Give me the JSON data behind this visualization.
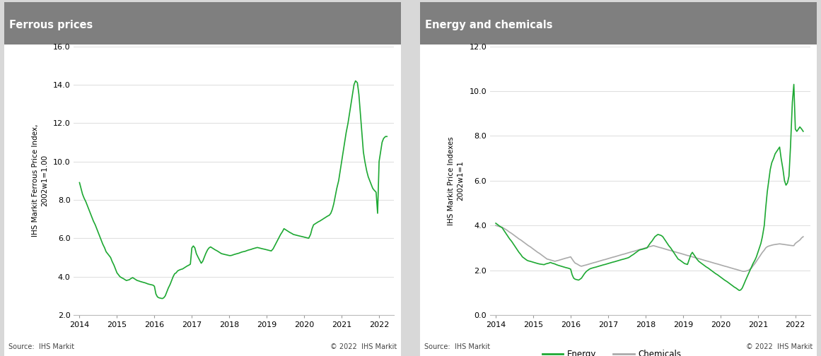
{
  "ferrous_title": "Ferrous prices",
  "energy_title": "Energy and chemicals",
  "ferrous_ylabel": "IHS Markit Ferrous Price Index,\n2002w1=1.00",
  "energy_ylabel": "IHS Markit Price Indexes\n2002w1=1",
  "source_text": "Source:  IHS Markit",
  "copyright_text": "© 2022  IHS Markit",
  "header_color": "#7f7f7f",
  "line_green": "#1da832",
  "line_gray": "#aaaaaa",
  "fig_bg": "#e0e0e0",
  "panel_bg": "#ffffff",
  "ferrous_ylim": [
    2.0,
    16.0
  ],
  "ferrous_yticks": [
    2.0,
    4.0,
    6.0,
    8.0,
    10.0,
    12.0,
    14.0,
    16.0
  ],
  "energy_ylim": [
    0.0,
    12.0
  ],
  "energy_yticks": [
    0.0,
    2.0,
    4.0,
    6.0,
    8.0,
    10.0,
    12.0
  ],
  "xlim": [
    2013.85,
    2022.4
  ],
  "xticks": [
    2014,
    2015,
    2016,
    2017,
    2018,
    2019,
    2020,
    2021,
    2022
  ],
  "ferrous_x": [
    2014.0,
    2014.04,
    2014.08,
    2014.12,
    2014.17,
    2014.21,
    2014.25,
    2014.29,
    2014.33,
    2014.37,
    2014.42,
    2014.46,
    2014.5,
    2014.54,
    2014.58,
    2014.62,
    2014.67,
    2014.71,
    2014.75,
    2014.79,
    2014.83,
    2014.87,
    2014.92,
    2014.96,
    2015.0,
    2015.04,
    2015.08,
    2015.12,
    2015.17,
    2015.21,
    2015.25,
    2015.29,
    2015.33,
    2015.37,
    2015.42,
    2015.46,
    2015.5,
    2015.54,
    2015.58,
    2015.62,
    2015.67,
    2015.71,
    2015.75,
    2015.79,
    2015.83,
    2015.87,
    2015.92,
    2015.96,
    2016.0,
    2016.04,
    2016.08,
    2016.12,
    2016.17,
    2016.21,
    2016.25,
    2016.29,
    2016.33,
    2016.37,
    2016.42,
    2016.46,
    2016.5,
    2016.54,
    2016.58,
    2016.62,
    2016.67,
    2016.71,
    2016.75,
    2016.79,
    2016.83,
    2016.87,
    2016.92,
    2016.96,
    2017.0,
    2017.04,
    2017.08,
    2017.12,
    2017.17,
    2017.21,
    2017.25,
    2017.29,
    2017.33,
    2017.37,
    2017.42,
    2017.46,
    2017.5,
    2017.54,
    2017.58,
    2017.62,
    2017.67,
    2017.71,
    2017.75,
    2017.79,
    2017.83,
    2017.87,
    2017.92,
    2017.96,
    2018.0,
    2018.04,
    2018.08,
    2018.12,
    2018.17,
    2018.21,
    2018.25,
    2018.29,
    2018.33,
    2018.37,
    2018.42,
    2018.46,
    2018.5,
    2018.54,
    2018.58,
    2018.62,
    2018.67,
    2018.71,
    2018.75,
    2018.79,
    2018.83,
    2018.87,
    2018.92,
    2018.96,
    2019.0,
    2019.04,
    2019.08,
    2019.12,
    2019.17,
    2019.21,
    2019.25,
    2019.29,
    2019.33,
    2019.37,
    2019.42,
    2019.46,
    2019.5,
    2019.54,
    2019.58,
    2019.62,
    2019.67,
    2019.71,
    2019.75,
    2019.79,
    2019.83,
    2019.87,
    2019.92,
    2019.96,
    2020.0,
    2020.04,
    2020.08,
    2020.12,
    2020.17,
    2020.21,
    2020.25,
    2020.29,
    2020.33,
    2020.37,
    2020.42,
    2020.46,
    2020.5,
    2020.54,
    2020.58,
    2020.62,
    2020.67,
    2020.71,
    2020.75,
    2020.79,
    2020.83,
    2020.87,
    2020.92,
    2020.96,
    2021.0,
    2021.04,
    2021.08,
    2021.12,
    2021.17,
    2021.21,
    2021.25,
    2021.29,
    2021.33,
    2021.37,
    2021.42,
    2021.46,
    2021.5,
    2021.54,
    2021.58,
    2021.62,
    2021.67,
    2021.71,
    2021.75,
    2021.79,
    2021.83,
    2021.87,
    2021.92,
    2021.96,
    2022.0,
    2022.04,
    2022.08,
    2022.12,
    2022.17,
    2022.21
  ],
  "ferrous_y": [
    8.9,
    8.6,
    8.3,
    8.1,
    7.9,
    7.7,
    7.5,
    7.3,
    7.1,
    6.9,
    6.7,
    6.5,
    6.3,
    6.1,
    5.9,
    5.7,
    5.5,
    5.3,
    5.2,
    5.1,
    5.0,
    4.8,
    4.6,
    4.4,
    4.2,
    4.1,
    4.0,
    3.95,
    3.9,
    3.85,
    3.8,
    3.82,
    3.84,
    3.9,
    3.95,
    3.9,
    3.85,
    3.8,
    3.78,
    3.75,
    3.72,
    3.7,
    3.68,
    3.65,
    3.62,
    3.6,
    3.58,
    3.56,
    3.5,
    3.1,
    2.95,
    2.9,
    2.88,
    2.86,
    2.9,
    3.0,
    3.2,
    3.4,
    3.6,
    3.8,
    4.0,
    4.15,
    4.2,
    4.3,
    4.35,
    4.38,
    4.4,
    4.45,
    4.5,
    4.55,
    4.6,
    4.65,
    5.5,
    5.6,
    5.5,
    5.2,
    5.0,
    4.85,
    4.7,
    4.8,
    5.0,
    5.2,
    5.4,
    5.5,
    5.55,
    5.5,
    5.45,
    5.4,
    5.35,
    5.3,
    5.25,
    5.2,
    5.18,
    5.16,
    5.14,
    5.12,
    5.1,
    5.1,
    5.12,
    5.15,
    5.18,
    5.2,
    5.22,
    5.25,
    5.28,
    5.3,
    5.32,
    5.35,
    5.38,
    5.4,
    5.42,
    5.45,
    5.48,
    5.5,
    5.52,
    5.5,
    5.48,
    5.46,
    5.44,
    5.42,
    5.4,
    5.38,
    5.36,
    5.34,
    5.45,
    5.6,
    5.75,
    5.9,
    6.05,
    6.2,
    6.35,
    6.5,
    6.45,
    6.4,
    6.35,
    6.3,
    6.25,
    6.2,
    6.18,
    6.16,
    6.14,
    6.12,
    6.1,
    6.08,
    6.06,
    6.04,
    6.02,
    6.0,
    6.2,
    6.5,
    6.7,
    6.75,
    6.8,
    6.85,
    6.9,
    6.95,
    7.0,
    7.05,
    7.1,
    7.15,
    7.2,
    7.3,
    7.5,
    7.8,
    8.2,
    8.6,
    9.0,
    9.5,
    10.0,
    10.5,
    11.0,
    11.5,
    12.0,
    12.5,
    13.0,
    13.5,
    14.0,
    14.2,
    14.1,
    13.5,
    12.5,
    11.5,
    10.5,
    10.0,
    9.5,
    9.2,
    9.0,
    8.8,
    8.6,
    8.5,
    8.4,
    7.3,
    10.0,
    10.5,
    11.0,
    11.2,
    11.3,
    11.3
  ],
  "energy_x": [
    2014.0,
    2014.04,
    2014.08,
    2014.12,
    2014.17,
    2014.21,
    2014.25,
    2014.29,
    2014.33,
    2014.37,
    2014.42,
    2014.46,
    2014.5,
    2014.54,
    2014.58,
    2014.62,
    2014.67,
    2014.71,
    2014.75,
    2014.79,
    2014.83,
    2014.87,
    2014.92,
    2014.96,
    2015.0,
    2015.04,
    2015.08,
    2015.12,
    2015.17,
    2015.21,
    2015.25,
    2015.29,
    2015.33,
    2015.37,
    2015.42,
    2015.46,
    2015.5,
    2015.54,
    2015.58,
    2015.62,
    2015.67,
    2015.71,
    2015.75,
    2015.79,
    2015.83,
    2015.87,
    2015.92,
    2015.96,
    2016.0,
    2016.04,
    2016.08,
    2016.12,
    2016.17,
    2016.21,
    2016.25,
    2016.29,
    2016.33,
    2016.37,
    2016.42,
    2016.46,
    2016.5,
    2016.54,
    2016.58,
    2016.62,
    2016.67,
    2016.71,
    2016.75,
    2016.79,
    2016.83,
    2016.87,
    2016.92,
    2016.96,
    2017.0,
    2017.04,
    2017.08,
    2017.12,
    2017.17,
    2017.21,
    2017.25,
    2017.29,
    2017.33,
    2017.37,
    2017.42,
    2017.46,
    2017.5,
    2017.54,
    2017.58,
    2017.62,
    2017.67,
    2017.71,
    2017.75,
    2017.79,
    2017.83,
    2017.87,
    2017.92,
    2017.96,
    2018.0,
    2018.04,
    2018.08,
    2018.12,
    2018.17,
    2018.21,
    2018.25,
    2018.29,
    2018.33,
    2018.37,
    2018.42,
    2018.46,
    2018.5,
    2018.54,
    2018.58,
    2018.62,
    2018.67,
    2018.71,
    2018.75,
    2018.79,
    2018.83,
    2018.87,
    2018.92,
    2018.96,
    2019.0,
    2019.04,
    2019.08,
    2019.12,
    2019.17,
    2019.21,
    2019.25,
    2019.29,
    2019.33,
    2019.37,
    2019.42,
    2019.46,
    2019.5,
    2019.54,
    2019.58,
    2019.62,
    2019.67,
    2019.71,
    2019.75,
    2019.79,
    2019.83,
    2019.87,
    2019.92,
    2019.96,
    2020.0,
    2020.04,
    2020.08,
    2020.12,
    2020.17,
    2020.21,
    2020.25,
    2020.29,
    2020.33,
    2020.37,
    2020.42,
    2020.46,
    2020.5,
    2020.54,
    2020.58,
    2020.62,
    2020.67,
    2020.71,
    2020.75,
    2020.79,
    2020.83,
    2020.87,
    2020.92,
    2020.96,
    2021.0,
    2021.04,
    2021.08,
    2021.12,
    2021.17,
    2021.21,
    2021.25,
    2021.29,
    2021.33,
    2021.37,
    2021.42,
    2021.46,
    2021.5,
    2021.54,
    2021.58,
    2021.62,
    2021.67,
    2021.71,
    2021.75,
    2021.79,
    2021.83,
    2021.87,
    2021.92,
    2021.96,
    2022.0,
    2022.04,
    2022.08,
    2022.12,
    2022.17,
    2022.21
  ],
  "energy_y": [
    4.1,
    4.05,
    4.0,
    3.95,
    3.9,
    3.8,
    3.7,
    3.6,
    3.5,
    3.4,
    3.3,
    3.2,
    3.1,
    3.0,
    2.9,
    2.8,
    2.7,
    2.6,
    2.55,
    2.5,
    2.45,
    2.42,
    2.4,
    2.38,
    2.36,
    2.34,
    2.32,
    2.3,
    2.28,
    2.27,
    2.26,
    2.25,
    2.28,
    2.3,
    2.32,
    2.35,
    2.32,
    2.3,
    2.28,
    2.25,
    2.22,
    2.2,
    2.18,
    2.16,
    2.14,
    2.12,
    2.1,
    2.08,
    2.05,
    1.8,
    1.65,
    1.6,
    1.58,
    1.56,
    1.6,
    1.65,
    1.75,
    1.85,
    1.95,
    2.0,
    2.05,
    2.08,
    2.1,
    2.12,
    2.14,
    2.16,
    2.18,
    2.2,
    2.22,
    2.24,
    2.26,
    2.28,
    2.3,
    2.32,
    2.34,
    2.36,
    2.38,
    2.4,
    2.42,
    2.44,
    2.46,
    2.48,
    2.5,
    2.52,
    2.54,
    2.56,
    2.6,
    2.65,
    2.7,
    2.75,
    2.8,
    2.85,
    2.9,
    2.92,
    2.94,
    2.96,
    2.98,
    3.0,
    3.1,
    3.2,
    3.3,
    3.4,
    3.5,
    3.55,
    3.6,
    3.58,
    3.55,
    3.5,
    3.4,
    3.3,
    3.2,
    3.1,
    3.0,
    2.9,
    2.8,
    2.7,
    2.6,
    2.5,
    2.45,
    2.4,
    2.35,
    2.3,
    2.28,
    2.26,
    2.5,
    2.7,
    2.8,
    2.7,
    2.6,
    2.5,
    2.4,
    2.35,
    2.3,
    2.25,
    2.2,
    2.15,
    2.1,
    2.05,
    2.0,
    1.95,
    1.9,
    1.85,
    1.8,
    1.75,
    1.7,
    1.65,
    1.6,
    1.55,
    1.5,
    1.45,
    1.4,
    1.35,
    1.3,
    1.25,
    1.2,
    1.15,
    1.1,
    1.12,
    1.2,
    1.35,
    1.55,
    1.7,
    1.85,
    2.0,
    2.15,
    2.3,
    2.45,
    2.6,
    2.8,
    3.0,
    3.2,
    3.5,
    4.0,
    4.8,
    5.5,
    6.0,
    6.5,
    6.8,
    7.0,
    7.2,
    7.3,
    7.4,
    7.5,
    7.0,
    6.5,
    6.0,
    5.8,
    5.9,
    6.2,
    7.5,
    9.5,
    10.3,
    8.3,
    8.2,
    8.3,
    8.4,
    8.3,
    8.2
  ],
  "chemicals_y": [
    4.0,
    3.98,
    3.96,
    3.94,
    3.92,
    3.88,
    3.84,
    3.8,
    3.75,
    3.7,
    3.65,
    3.6,
    3.55,
    3.5,
    3.45,
    3.4,
    3.35,
    3.3,
    3.25,
    3.2,
    3.15,
    3.1,
    3.05,
    3.0,
    2.95,
    2.9,
    2.85,
    2.8,
    2.75,
    2.7,
    2.65,
    2.6,
    2.55,
    2.5,
    2.48,
    2.46,
    2.44,
    2.42,
    2.4,
    2.42,
    2.44,
    2.46,
    2.48,
    2.5,
    2.52,
    2.54,
    2.56,
    2.58,
    2.6,
    2.5,
    2.4,
    2.32,
    2.28,
    2.24,
    2.2,
    2.18,
    2.2,
    2.22,
    2.24,
    2.26,
    2.28,
    2.3,
    2.32,
    2.34,
    2.36,
    2.38,
    2.4,
    2.42,
    2.44,
    2.46,
    2.48,
    2.5,
    2.52,
    2.54,
    2.56,
    2.58,
    2.6,
    2.62,
    2.64,
    2.66,
    2.68,
    2.7,
    2.72,
    2.74,
    2.76,
    2.78,
    2.8,
    2.82,
    2.84,
    2.86,
    2.88,
    2.9,
    2.92,
    2.94,
    2.96,
    2.98,
    3.0,
    3.02,
    3.04,
    3.06,
    3.08,
    3.1,
    3.08,
    3.06,
    3.04,
    3.02,
    3.0,
    2.98,
    2.96,
    2.94,
    2.92,
    2.9,
    2.88,
    2.86,
    2.84,
    2.82,
    2.8,
    2.78,
    2.76,
    2.74,
    2.72,
    2.7,
    2.68,
    2.66,
    2.64,
    2.62,
    2.6,
    2.58,
    2.56,
    2.54,
    2.52,
    2.5,
    2.48,
    2.46,
    2.44,
    2.42,
    2.4,
    2.38,
    2.36,
    2.34,
    2.32,
    2.3,
    2.28,
    2.26,
    2.24,
    2.22,
    2.2,
    2.18,
    2.16,
    2.14,
    2.12,
    2.1,
    2.08,
    2.06,
    2.04,
    2.02,
    2.0,
    1.98,
    1.96,
    1.95,
    1.96,
    1.98,
    2.0,
    2.05,
    2.1,
    2.2,
    2.3,
    2.4,
    2.5,
    2.6,
    2.7,
    2.8,
    2.9,
    3.0,
    3.05,
    3.08,
    3.1,
    3.12,
    3.14,
    3.15,
    3.16,
    3.17,
    3.18,
    3.17,
    3.16,
    3.15,
    3.14,
    3.13,
    3.12,
    3.11,
    3.1,
    3.1,
    3.2,
    3.25,
    3.3,
    3.35,
    3.45,
    3.5
  ]
}
